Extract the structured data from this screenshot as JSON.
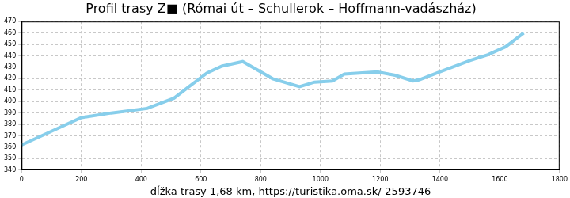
{
  "chart_data": {
    "type": "line",
    "title": "Profil trasy Z■ (Római út – Schullerok – Hoffmann-vadászház)",
    "x_label": "dĺžka trasy 1,68 km, https://turistika.oma.sk/-2593746",
    "x": [
      0,
      100,
      200,
      300,
      420,
      510,
      560,
      620,
      670,
      740,
      840,
      930,
      980,
      1040,
      1080,
      1190,
      1250,
      1310,
      1330,
      1400,
      1500,
      1560,
      1620,
      1680
    ],
    "values": [
      362,
      374,
      386,
      390,
      394,
      403,
      413,
      425,
      431,
      435,
      420,
      413,
      417,
      418,
      424,
      426,
      423,
      418,
      419,
      426,
      436,
      441,
      448,
      460
    ],
    "color": "#87ceeb",
    "xlim": [
      0,
      1800
    ],
    "xticks": [
      0,
      200,
      400,
      600,
      800,
      1000,
      1200,
      1400,
      1600,
      1800
    ],
    "ylim": [
      340,
      470
    ],
    "yticks": [
      340,
      350,
      360,
      370,
      380,
      390,
      400,
      410,
      420,
      430,
      440,
      450,
      460,
      470
    ],
    "grid": true
  }
}
